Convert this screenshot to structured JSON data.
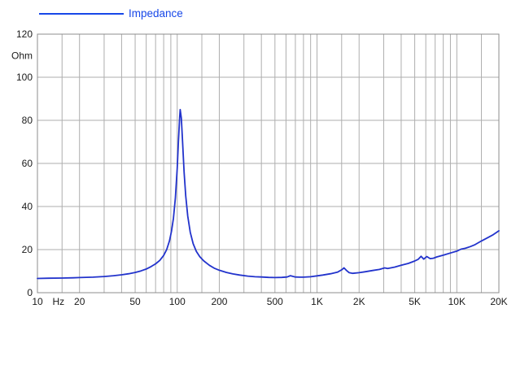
{
  "legend": {
    "label": "Impedance",
    "color": "#1747e8"
  },
  "colors": {
    "curve": "#2233cc",
    "grid": "#aeaeae",
    "frame": "#8c8c8c",
    "text": "#1a1a1a",
    "background": "#ffffff"
  },
  "chart_data": {
    "type": "line",
    "title": "Impedance",
    "x_axis": {
      "scale": "log",
      "min": 10,
      "max": 20000,
      "unit": "Hz",
      "tick_labels": [
        {
          "f": 10,
          "label": "10"
        },
        {
          "f": 20,
          "label": "20"
        },
        {
          "f": 50,
          "label": "50"
        },
        {
          "f": 100,
          "label": "100"
        },
        {
          "f": 200,
          "label": "200"
        },
        {
          "f": 500,
          "label": "500"
        },
        {
          "f": 1000,
          "label": "1K"
        },
        {
          "f": 2000,
          "label": "2K"
        },
        {
          "f": 5000,
          "label": "5K"
        },
        {
          "f": 10000,
          "label": "10K"
        },
        {
          "f": 20000,
          "label": "20K"
        }
      ],
      "gridlines": [
        10,
        15,
        20,
        30,
        40,
        50,
        60,
        70,
        80,
        90,
        100,
        150,
        200,
        300,
        400,
        500,
        600,
        700,
        800,
        900,
        1000,
        1500,
        2000,
        3000,
        4000,
        5000,
        6000,
        7000,
        8000,
        9000,
        10000,
        15000,
        20000
      ]
    },
    "y_axis": {
      "scale": "linear",
      "min": 0,
      "max": 120,
      "unit": "Ohm",
      "ticks": [
        0,
        20,
        40,
        60,
        80,
        100,
        120
      ]
    },
    "series": [
      {
        "name": "Impedance",
        "points": [
          [
            10,
            6.6
          ],
          [
            12,
            6.7
          ],
          [
            15,
            6.8
          ],
          [
            18,
            6.9
          ],
          [
            20,
            7.0
          ],
          [
            25,
            7.2
          ],
          [
            30,
            7.5
          ],
          [
            35,
            7.9
          ],
          [
            40,
            8.3
          ],
          [
            45,
            8.8
          ],
          [
            50,
            9.4
          ],
          [
            55,
            10.1
          ],
          [
            60,
            11.0
          ],
          [
            65,
            12.1
          ],
          [
            70,
            13.4
          ],
          [
            75,
            15.0
          ],
          [
            80,
            17.3
          ],
          [
            84,
            20.0
          ],
          [
            88,
            24.0
          ],
          [
            91,
            28.5
          ],
          [
            94,
            34.5
          ],
          [
            97,
            44.0
          ],
          [
            100,
            58.0
          ],
          [
            102,
            70.0
          ],
          [
            104,
            81.0
          ],
          [
            105,
            85.0
          ],
          [
            107,
            81.0
          ],
          [
            109,
            71.0
          ],
          [
            112,
            56.0
          ],
          [
            115,
            45.0
          ],
          [
            119,
            35.5
          ],
          [
            124,
            28.0
          ],
          [
            130,
            22.8
          ],
          [
            137,
            19.2
          ],
          [
            145,
            16.7
          ],
          [
            155,
            14.7
          ],
          [
            170,
            12.7
          ],
          [
            185,
            11.3
          ],
          [
            200,
            10.4
          ],
          [
            225,
            9.4
          ],
          [
            250,
            8.7
          ],
          [
            280,
            8.2
          ],
          [
            320,
            7.7
          ],
          [
            360,
            7.4
          ],
          [
            400,
            7.3
          ],
          [
            450,
            7.1
          ],
          [
            500,
            7.0
          ],
          [
            560,
            7.1
          ],
          [
            610,
            7.3
          ],
          [
            645,
            7.9
          ],
          [
            670,
            7.6
          ],
          [
            700,
            7.3
          ],
          [
            750,
            7.2
          ],
          [
            800,
            7.2
          ],
          [
            900,
            7.4
          ],
          [
            1000,
            7.8
          ],
          [
            1100,
            8.2
          ],
          [
            1250,
            8.8
          ],
          [
            1400,
            9.5
          ],
          [
            1500,
            10.6
          ],
          [
            1560,
            11.5
          ],
          [
            1620,
            10.4
          ],
          [
            1700,
            9.3
          ],
          [
            1800,
            9.0
          ],
          [
            2000,
            9.3
          ],
          [
            2200,
            9.7
          ],
          [
            2500,
            10.3
          ],
          [
            2800,
            10.8
          ],
          [
            3050,
            11.5
          ],
          [
            3200,
            11.2
          ],
          [
            3600,
            11.9
          ],
          [
            4000,
            12.7
          ],
          [
            4500,
            13.6
          ],
          [
            5000,
            14.7
          ],
          [
            5300,
            15.5
          ],
          [
            5550,
            16.9
          ],
          [
            5800,
            15.6
          ],
          [
            6100,
            16.8
          ],
          [
            6450,
            15.8
          ],
          [
            6800,
            16.0
          ],
          [
            7200,
            16.6
          ],
          [
            8000,
            17.4
          ],
          [
            9000,
            18.4
          ],
          [
            10000,
            19.3
          ],
          [
            10700,
            20.2
          ],
          [
            11500,
            20.6
          ],
          [
            12500,
            21.4
          ],
          [
            13500,
            22.3
          ],
          [
            15000,
            24.0
          ],
          [
            16500,
            25.4
          ],
          [
            18000,
            26.7
          ],
          [
            20000,
            28.7
          ]
        ]
      }
    ]
  }
}
